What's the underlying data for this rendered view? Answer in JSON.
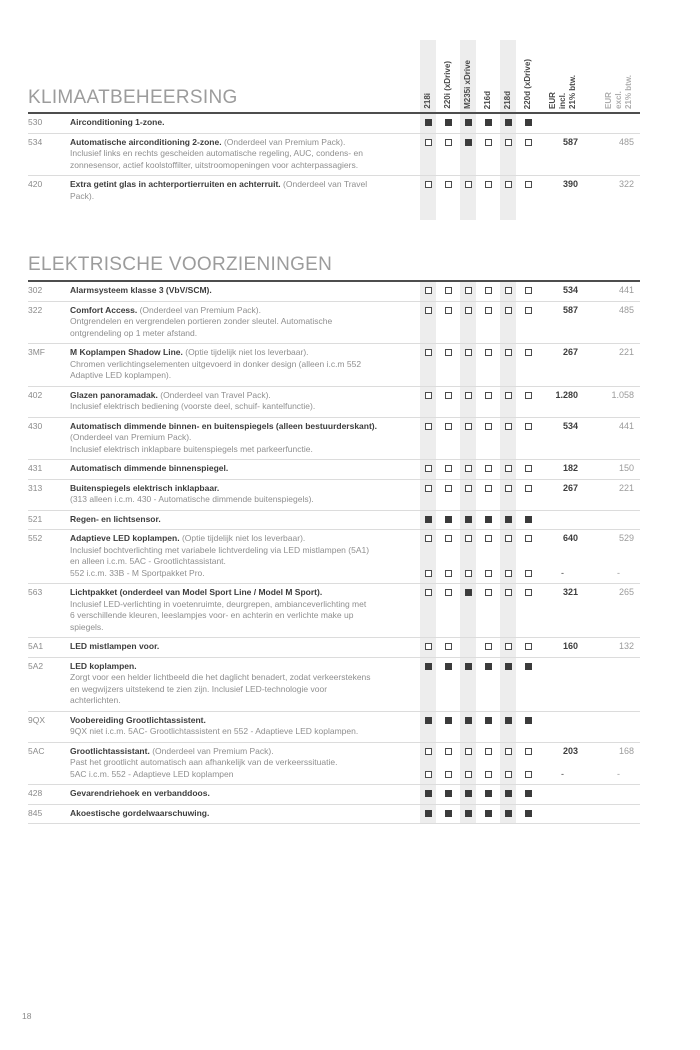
{
  "page_number": "18",
  "colors": {
    "accent_dark": "#3b3b3b",
    "band_gray": "#ededed",
    "text_gray": "#8f8f8f"
  },
  "header": {
    "models": [
      "218i",
      "220i (xDrive)",
      "M235i xDrive",
      "216d",
      "218d",
      "220d (xDrive)"
    ],
    "price_incl_label": "EUR\nincl.\n21% btw.",
    "price_excl_label": "EUR\nexcl.\n21% btw."
  },
  "sections": [
    {
      "title": "KLIMAATBEHEERSING",
      "rows": [
        {
          "code": "530",
          "title": "Airconditioning 1-zone.",
          "note": "",
          "desc": [],
          "marks": [
            "f",
            "f",
            "f",
            "f",
            "f",
            "f"
          ],
          "incl": "",
          "excl": ""
        },
        {
          "code": "534",
          "title": "Automatische airconditioning 2-zone.",
          "note": "(Onderdeel  van Premium Pack).",
          "desc": [
            "Inclusief links en rechts gescheiden automatische regeling, AUC, condens- en",
            "zonnesensor, actief koolstoffilter, uitstroomopeningen voor achterpassagiers."
          ],
          "marks": [
            "o",
            "o",
            "f",
            "o",
            "o",
            "o"
          ],
          "incl": "587",
          "excl": "485"
        },
        {
          "code": "420",
          "title": "Extra getint glas in achterportierruiten en achterruit.",
          "note": "(Onderdeel  van Travel",
          "desc": [
            "Pack)."
          ],
          "marks": [
            "o",
            "o",
            "o",
            "o",
            "o",
            "o"
          ],
          "incl": "390",
          "excl": "322"
        }
      ]
    },
    {
      "title": "ELEKTRISCHE VOORZIENINGEN",
      "rows": [
        {
          "code": "302",
          "title": "Alarmsysteem klasse 3 (VbV/SCM).",
          "note": "",
          "desc": [],
          "marks": [
            "o",
            "o",
            "o",
            "o",
            "o",
            "o"
          ],
          "incl": "534",
          "excl": "441"
        },
        {
          "code": "322",
          "title": "Comfort Access.",
          "note": "(Onderdeel van Premium Pack).",
          "desc": [
            "Ontgrendelen en vergrendelen portieren zonder sleutel. Automatische",
            "ontgrendeling op 1 meter afstand."
          ],
          "marks": [
            "o",
            "o",
            "o",
            "o",
            "o",
            "o"
          ],
          "incl": "587",
          "excl": "485"
        },
        {
          "code": "3MF",
          "title": "M Koplampen Shadow Line.",
          "note": "(Optie tijdelijk niet los leverbaar).",
          "desc": [
            "Chromen verlichtingselementen uitgevoerd in donker design (alleen i.c.m 552",
            "Adaptive LED koplampen)."
          ],
          "marks": [
            "o",
            "o",
            "o",
            "o",
            "o",
            "o"
          ],
          "incl": "267",
          "excl": "221"
        },
        {
          "code": "402",
          "title": "Glazen panoramadak.",
          "note": "(Onderdeel  van Travel Pack).",
          "desc": [
            "Inclusief elektrisch bediening (voorste deel, schuif- kantelfunctie)."
          ],
          "marks": [
            "o",
            "o",
            "o",
            "o",
            "o",
            "o"
          ],
          "incl": "1.280",
          "excl": "1.058"
        },
        {
          "code": "430",
          "title": "Automatisch dimmende binnen- en buitenspiegels (alleen bestuurderskant).",
          "note": "",
          "desc": [
            "(Onderdeel van Premium Pack).",
            "Inclusief elektrisch inklapbare buitenspiegels met parkeerfunctie."
          ],
          "marks": [
            "o",
            "o",
            "o",
            "o",
            "o",
            "o"
          ],
          "incl": "534",
          "excl": "441"
        },
        {
          "code": "431",
          "title": "Automatisch dimmende binnenspiegel.",
          "note": "",
          "desc": [],
          "marks": [
            "o",
            "o",
            "o",
            "o",
            "o",
            "o"
          ],
          "incl": "182",
          "excl": "150"
        },
        {
          "code": "313",
          "title": "Buitenspiegels elektrisch inklapbaar.",
          "note": "",
          "desc": [
            "(313 alleen i.c.m. 430 - Automatische dimmende buitenspiegels)."
          ],
          "marks": [
            "o",
            "o",
            "o",
            "o",
            "o",
            "o"
          ],
          "incl": "267",
          "excl": "221"
        },
        {
          "code": "521",
          "title": "Regen- en lichtsensor.",
          "note": "",
          "desc": [],
          "marks": [
            "f",
            "f",
            "f",
            "f",
            "f",
            "f"
          ],
          "incl": "",
          "excl": ""
        },
        {
          "code": "552",
          "title": "Adaptieve LED koplampen.",
          "note": "(Optie tijdelijk niet los leverbaar).",
          "desc": [
            "Inclusief bochtverlichting met variabele lichtverdeling via LED mistlampen (5A1)",
            "en alleen i.c.m. 5AC - Grootlichtassistant.",
            "552 i.c.m. 33B - M Sportpakket Pro."
          ],
          "marks": [
            "o",
            "o",
            "o",
            "o",
            "o",
            "o"
          ],
          "incl": "640",
          "excl": "529",
          "marks2": [
            "o",
            "o",
            "o",
            "o",
            "o",
            "o"
          ],
          "incl2": "-",
          "excl2": "-"
        },
        {
          "code": "563",
          "title": "Lichtpakket (onderdeel van Model Sport Line / Model M Sport).",
          "note": "",
          "desc": [
            "Inclusief LED-verlichting in voetenruimte, deurgrepen, ambianceverlichting met",
            "6 verschillende kleuren, leeslampjes voor- en achterin en verlichte make up",
            "spiegels."
          ],
          "marks": [
            "o",
            "o",
            "f",
            "o",
            "o",
            "o"
          ],
          "incl": "321",
          "excl": "265"
        },
        {
          "code": "5A1",
          "title": "LED mistlampen voor.",
          "note": "",
          "desc": [],
          "marks": [
            "o",
            "o",
            "n",
            "o",
            "o",
            "o"
          ],
          "incl": "160",
          "excl": "132"
        },
        {
          "code": "5A2",
          "title": "LED koplampen.",
          "note": "",
          "desc": [
            "Zorgt voor een helder lichtbeeld die het daglicht benadert, zodat verkeerstekens",
            "en wegwijzers uitstekend te zien zijn. Inclusief LED-technologie voor",
            "achterlichten."
          ],
          "marks": [
            "f",
            "f",
            "f",
            "f",
            "f",
            "f"
          ],
          "incl": "",
          "excl": ""
        },
        {
          "code": "9QX",
          "title": "Voobereiding Grootlichtassistent.",
          "note": "",
          "desc": [
            "9QX niet i.c.m. 5AC- Grootlichtassistent en 552 - Adaptieve LED koplampen."
          ],
          "marks": [
            "f",
            "f",
            "f",
            "f",
            "f",
            "f"
          ],
          "incl": "",
          "excl": ""
        },
        {
          "code": "5AC",
          "title": "Grootlichtassistant.",
          "note": "(Onderdeel van Premium Pack).",
          "desc": [
            "Past het grootlicht automatisch aan afhankelijk van de verkeerssituatie.",
            "5AC i.c.m. 552 - Adaptieve LED koplampen"
          ],
          "marks": [
            "o",
            "o",
            "o",
            "o",
            "o",
            "o"
          ],
          "incl": "203",
          "excl": "168",
          "marks2": [
            "o",
            "o",
            "o",
            "o",
            "o",
            "o"
          ],
          "incl2": "-",
          "excl2": "-"
        },
        {
          "code": "428",
          "title": "Gevarendriehoek en verbanddoos.",
          "note": "",
          "desc": [],
          "marks": [
            "f",
            "f",
            "f",
            "f",
            "f",
            "f"
          ],
          "incl": "",
          "excl": ""
        },
        {
          "code": "845",
          "title": "Akoestische gordelwaarschuwing.",
          "note": "",
          "desc": [],
          "marks": [
            "f",
            "f",
            "f",
            "f",
            "f",
            "f"
          ],
          "incl": "",
          "excl": ""
        }
      ]
    }
  ]
}
